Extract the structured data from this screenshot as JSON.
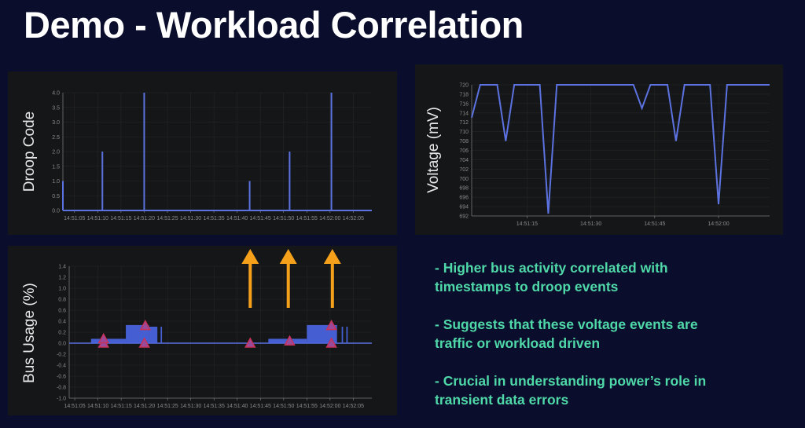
{
  "title": "Demo - Workload Correlation",
  "notes": [
    {
      "line1": " - Higher bus activity correlated with",
      "line2": "timestamps to droop events"
    },
    {
      "line1": "- Suggests that these voltage events are",
      "line2": "traffic or workload driven"
    },
    {
      "line1": "- Crucial in understanding power’s role in",
      "line2": "transient data errors"
    }
  ],
  "colors": {
    "background": "#0a0d2c",
    "line": "#5b72e0",
    "arrow": "#f5a01a",
    "marker": "#c8325a",
    "notes": "#4fd8a8"
  },
  "chart_data": [
    {
      "type": "bar",
      "ylabel": "Droop Code",
      "xlim": [
        "14:51:02.5",
        "14:52:09"
      ],
      "ylim": [
        0,
        4
      ],
      "grid": true,
      "yticks": [
        "0.0",
        "0.5",
        "1.0",
        "1.5",
        "2.0",
        "2.5",
        "3.0",
        "3.5",
        "4.0"
      ],
      "xticks": [
        "14:51:05",
        "14:51:10",
        "14:51:15",
        "14:51:20",
        "14:51:25",
        "14:51:30",
        "14:51:35",
        "14:51:40",
        "14:51:45",
        "14:51:50",
        "14:51:55",
        "14:52:00",
        "14:52:05"
      ],
      "points": [
        {
          "x": "14:51:02.5",
          "y": 1
        },
        {
          "x": "14:51:11",
          "y": 2
        },
        {
          "x": "14:51:20",
          "y": 4
        },
        {
          "x": "14:51:42.7",
          "y": 1
        },
        {
          "x": "14:51:51.3",
          "y": 2
        },
        {
          "x": "14:52:00.3",
          "y": 4
        }
      ]
    },
    {
      "type": "line",
      "ylabel": "Voltage (mV)",
      "xlim": [
        "14:51:02",
        "14:52:12"
      ],
      "ylim": [
        692,
        720
      ],
      "grid": true,
      "yticks": [
        "692",
        "694",
        "696",
        "698",
        "700",
        "702",
        "704",
        "706",
        "708",
        "710",
        "712",
        "714",
        "716",
        "718",
        "720"
      ],
      "xticks": [
        "14:51:15",
        "14:51:30",
        "14:51:45",
        "14:52:00"
      ],
      "points": [
        {
          "x": "14:51:02",
          "y": 713
        },
        {
          "x": "14:51:04",
          "y": 720
        },
        {
          "x": "14:51:08",
          "y": 720
        },
        {
          "x": "14:51:10",
          "y": 708
        },
        {
          "x": "14:51:12",
          "y": 720
        },
        {
          "x": "14:51:18",
          "y": 720
        },
        {
          "x": "14:51:20",
          "y": 692.5
        },
        {
          "x": "14:51:22",
          "y": 720
        },
        {
          "x": "14:51:40",
          "y": 720
        },
        {
          "x": "14:51:42",
          "y": 715
        },
        {
          "x": "14:51:44",
          "y": 720
        },
        {
          "x": "14:51:48",
          "y": 720
        },
        {
          "x": "14:51:50",
          "y": 708
        },
        {
          "x": "14:51:52",
          "y": 720
        },
        {
          "x": "14:51:58",
          "y": 720
        },
        {
          "x": "14:52:00",
          "y": 694.5
        },
        {
          "x": "14:52:02",
          "y": 720
        },
        {
          "x": "14:52:12",
          "y": 720
        }
      ]
    },
    {
      "type": "area",
      "ylabel": "Bus Usage (%)",
      "xlim": [
        "14:51:03.8",
        "14:52:09"
      ],
      "ylim": [
        -1.0,
        1.4
      ],
      "grid": true,
      "yticks": [
        "-1.0",
        "-0.8",
        "-0.6",
        "-0.4",
        "-0.2",
        "0.0",
        "0.2",
        "0.4",
        "0.6",
        "0.8",
        "1.0",
        "1.2",
        "1.4"
      ],
      "xticks": [
        "14:51:05",
        "14:51:10",
        "14:51:15",
        "14:51:20",
        "14:51:25",
        "14:51:30",
        "14:51:35",
        "14:51:40",
        "14:51:45",
        "14:51:50",
        "14:51:55",
        "14:52:00",
        "14:52:05"
      ],
      "activity": [
        {
          "from": "14:51:08.5",
          "to": "14:51:16",
          "value": 0.08
        },
        {
          "from": "14:51:16",
          "to": "14:51:21",
          "value": 0.33
        },
        {
          "from": "14:51:21",
          "to": "14:51:22.8",
          "value": 0.3
        },
        {
          "from": "14:51:23.5",
          "to": "14:51:23.8",
          "value": 0.3
        },
        {
          "from": "14:51:46.7",
          "to": "14:51:55",
          "value": 0.08
        },
        {
          "from": "14:51:55",
          "to": "14:52:01.5",
          "value": 0.33
        },
        {
          "from": "14:52:02.5",
          "to": "14:52:02.8",
          "value": 0.3
        },
        {
          "from": "14:52:03.5",
          "to": "14:52:03.8",
          "value": 0.3
        }
      ],
      "droop_markers": [
        {
          "x": "14:51:11.2",
          "y": 0.0
        },
        {
          "x": "14:51:11.2",
          "y": 0.08
        },
        {
          "x": "14:51:20",
          "y": 0.0
        },
        {
          "x": "14:51:20.2",
          "y": 0.32
        },
        {
          "x": "14:51:42.8",
          "y": 0.0
        },
        {
          "x": "14:51:51.3",
          "y": 0.04
        },
        {
          "x": "14:52:00.3",
          "y": 0.0
        },
        {
          "x": "14:52:00.3",
          "y": 0.32
        }
      ],
      "arrows_at": [
        "14:51:42.8",
        "14:51:51.0",
        "14:52:00.5"
      ]
    }
  ]
}
